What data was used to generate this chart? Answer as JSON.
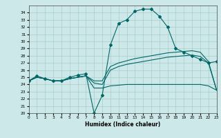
{
  "xlabel": "Humidex (Indice chaleur)",
  "background_color": "#cce8e8",
  "grid_color": "#aacccc",
  "line_color": "#006666",
  "xlim": [
    0,
    23
  ],
  "ylim": [
    20,
    35
  ],
  "yticks": [
    20,
    21,
    22,
    23,
    24,
    25,
    26,
    27,
    28,
    29,
    30,
    31,
    32,
    33,
    34
  ],
  "xticks": [
    0,
    1,
    2,
    3,
    4,
    5,
    6,
    7,
    8,
    9,
    10,
    11,
    12,
    13,
    14,
    15,
    16,
    17,
    18,
    19,
    20,
    21,
    22,
    23
  ],
  "series": [
    {
      "x": [
        0,
        1,
        2,
        3,
        4,
        5,
        6,
        7,
        8,
        9,
        10,
        11,
        12,
        13,
        14,
        15,
        16,
        17,
        18,
        19,
        20,
        21,
        22,
        23
      ],
      "y": [
        24.5,
        25.2,
        24.8,
        24.5,
        24.5,
        25.0,
        25.3,
        25.5,
        20.0,
        22.5,
        29.5,
        32.5,
        33.0,
        34.2,
        34.5,
        34.5,
        33.5,
        32.0,
        29.0,
        28.5,
        28.0,
        27.5,
        27.0,
        27.2
      ],
      "marker": true
    },
    {
      "x": [
        0,
        1,
        2,
        3,
        4,
        5,
        6,
        7,
        8,
        9,
        10,
        11,
        12,
        13,
        14,
        15,
        16,
        17,
        18,
        19,
        20,
        21,
        22,
        23
      ],
      "y": [
        24.5,
        25.0,
        24.8,
        24.5,
        24.5,
        24.8,
        25.0,
        25.2,
        24.5,
        24.5,
        26.5,
        27.0,
        27.3,
        27.6,
        27.8,
        28.0,
        28.2,
        28.4,
        28.5,
        28.6,
        28.7,
        28.5,
        27.2,
        23.2
      ],
      "marker": false
    },
    {
      "x": [
        0,
        1,
        2,
        3,
        4,
        5,
        6,
        7,
        8,
        9,
        10,
        11,
        12,
        13,
        14,
        15,
        16,
        17,
        18,
        19,
        20,
        21,
        22,
        23
      ],
      "y": [
        24.5,
        25.0,
        24.8,
        24.5,
        24.5,
        24.8,
        25.0,
        25.2,
        24.2,
        24.0,
        26.0,
        26.5,
        26.8,
        27.0,
        27.2,
        27.4,
        27.6,
        27.8,
        27.9,
        28.0,
        28.1,
        27.9,
        27.0,
        23.2
      ],
      "marker": false
    },
    {
      "x": [
        0,
        1,
        2,
        3,
        4,
        5,
        6,
        7,
        8,
        9,
        10,
        11,
        12,
        13,
        14,
        15,
        16,
        17,
        18,
        19,
        20,
        21,
        22,
        23
      ],
      "y": [
        24.5,
        25.0,
        24.8,
        24.5,
        24.5,
        24.8,
        25.0,
        25.2,
        23.5,
        23.5,
        23.8,
        23.9,
        24.0,
        24.0,
        24.0,
        24.0,
        24.0,
        24.0,
        24.0,
        24.0,
        24.0,
        24.0,
        23.8,
        23.2
      ],
      "marker": false
    }
  ]
}
